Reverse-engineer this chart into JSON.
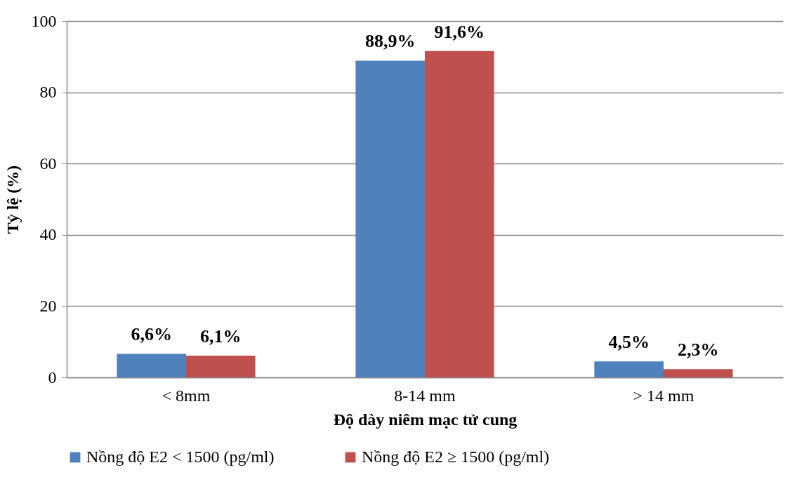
{
  "chart_data": {
    "type": "bar",
    "xlabel": "Độ dày niêm mạc tử cung",
    "ylabel": "Tỷ lệ (%)",
    "categories": [
      "< 8mm",
      "8-14 mm",
      "> 14 mm"
    ],
    "series": [
      {
        "name": "Nồng độ E2 < 1500  (pg/ml)",
        "color": "#4f81bd",
        "values": [
          6.6,
          88.9,
          4.5
        ],
        "value_labels": [
          "6,6%",
          "88,9%",
          "4,5%"
        ]
      },
      {
        "name": "Nồng độ E2 ≥ 1500 (pg/ml)",
        "color": "#c0504d",
        "values": [
          6.1,
          91.6,
          2.3
        ],
        "value_labels": [
          "6,1%",
          "91,6%",
          "2,3%"
        ]
      }
    ],
    "ylim": [
      0,
      100
    ],
    "yticks": [
      0,
      20,
      40,
      60,
      80,
      100
    ],
    "grid": "y",
    "legend": "bottom"
  }
}
